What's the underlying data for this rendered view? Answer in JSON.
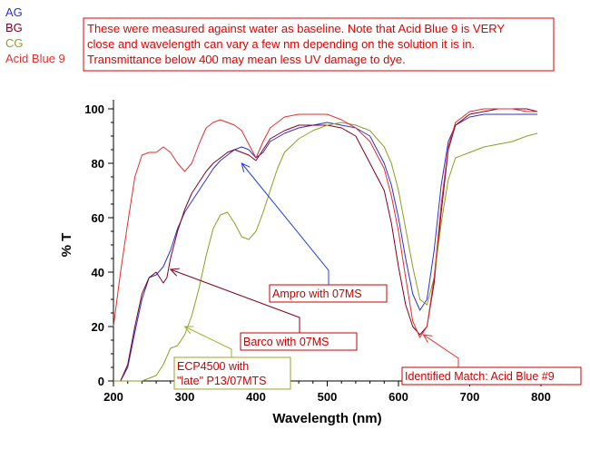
{
  "chart_data": {
    "type": "line",
    "xlabel": "Wavelength (nm)",
    "ylabel": "% T",
    "xlim": [
      200,
      800
    ],
    "ylim": [
      0,
      100
    ],
    "xticks": [
      200,
      300,
      400,
      500,
      600,
      700,
      800
    ],
    "yticks": [
      0,
      20,
      40,
      60,
      80,
      100
    ],
    "grid": false,
    "legend_position": "top-left",
    "series": [
      {
        "name": "AG",
        "color": "#3030d0",
        "x": [
          200,
          210,
          220,
          230,
          240,
          250,
          260,
          270,
          280,
          290,
          300,
          310,
          320,
          330,
          340,
          350,
          360,
          370,
          380,
          390,
          400,
          410,
          420,
          440,
          460,
          480,
          500,
          520,
          540,
          560,
          580,
          590,
          600,
          610,
          620,
          630,
          640,
          650,
          660,
          670,
          680,
          700,
          720,
          740,
          760,
          780,
          795
        ],
        "y": [
          0,
          0,
          5,
          18,
          30,
          38,
          39,
          42,
          48,
          56,
          62,
          66,
          70,
          74,
          78,
          81,
          83,
          85,
          86,
          85,
          82,
          84,
          88,
          91,
          93,
          94,
          95,
          94,
          93,
          90,
          80,
          72,
          60,
          45,
          32,
          26,
          30,
          48,
          72,
          88,
          94,
          97,
          98,
          98,
          98,
          98,
          98
        ]
      },
      {
        "name": "BG",
        "color": "#800020",
        "x": [
          200,
          210,
          220,
          230,
          240,
          250,
          260,
          270,
          275,
          280,
          290,
          300,
          310,
          320,
          330,
          340,
          350,
          360,
          370,
          380,
          390,
          400,
          410,
          420,
          440,
          460,
          480,
          500,
          520,
          540,
          560,
          580,
          590,
          600,
          610,
          620,
          630,
          640,
          650,
          660,
          670,
          680,
          700,
          720,
          740,
          760,
          780,
          795
        ],
        "y": [
          0,
          0,
          6,
          20,
          32,
          38,
          40,
          36,
          38,
          45,
          55,
          63,
          69,
          73,
          77,
          80,
          82,
          84,
          85,
          84,
          83,
          81,
          85,
          89,
          92,
          94,
          94,
          94,
          93,
          90,
          80,
          70,
          58,
          42,
          28,
          20,
          17,
          20,
          36,
          62,
          85,
          94,
          98,
          99,
          100,
          100,
          100,
          99
        ]
      },
      {
        "name": "CG",
        "color": "#8aa020",
        "x": [
          200,
          220,
          240,
          260,
          270,
          280,
          290,
          300,
          310,
          320,
          330,
          340,
          350,
          360,
          370,
          380,
          390,
          400,
          410,
          420,
          430,
          440,
          460,
          480,
          500,
          520,
          540,
          560,
          580,
          590,
          600,
          610,
          620,
          630,
          640,
          650,
          660,
          670,
          680,
          700,
          720,
          740,
          760,
          780,
          795
        ],
        "y": [
          0,
          0,
          0,
          2,
          6,
          12,
          13,
          17,
          24,
          34,
          46,
          56,
          61,
          62,
          58,
          53,
          52,
          55,
          62,
          70,
          78,
          84,
          89,
          92,
          94,
          95,
          94,
          92,
          86,
          80,
          70,
          56,
          42,
          30,
          28,
          38,
          58,
          74,
          82,
          84,
          86,
          87,
          88,
          90,
          91
        ]
      },
      {
        "name": "Acid Blue 9",
        "color": "#e03030",
        "x": [
          200,
          205,
          210,
          220,
          230,
          240,
          250,
          260,
          270,
          280,
          290,
          300,
          310,
          320,
          330,
          340,
          350,
          360,
          370,
          380,
          390,
          400,
          410,
          420,
          440,
          460,
          480,
          500,
          520,
          540,
          560,
          580,
          590,
          600,
          610,
          620,
          630,
          640,
          650,
          660,
          670,
          680,
          700,
          720,
          740,
          760,
          780,
          795
        ],
        "y": [
          20,
          30,
          40,
          58,
          75,
          83,
          84,
          84,
          86,
          84,
          80,
          77,
          80,
          87,
          93,
          95,
          96,
          95,
          94,
          92,
          87,
          82,
          88,
          93,
          97,
          98,
          98,
          98,
          96,
          93,
          88,
          78,
          68,
          55,
          38,
          22,
          16,
          20,
          38,
          65,
          86,
          95,
          99,
          100,
          100,
          100,
          99,
          99
        ]
      }
    ],
    "note": [
      "These were measured against water as baseline.  Note that Acid Blue 9 is VERY",
      "close and wavelength can vary a few nm depending on the solution it is in.",
      "Transmittance below 400 may mean less UV damage to dye."
    ],
    "annotations": [
      {
        "lines": [
          "Ampro with 07MS"
        ],
        "text_color": "#cc0000",
        "border_color": "#cc0000",
        "arrow_color": "#2040e0",
        "target": [
          380,
          80
        ]
      },
      {
        "lines": [
          "Barco with 07MS"
        ],
        "text_color": "#cc0000",
        "border_color": "#cc0000",
        "arrow_color": "#800020",
        "target": [
          280,
          41
        ]
      },
      {
        "lines": [
          "ECP4500 with",
          "\"late\" P13/07MTS"
        ],
        "text_color": "#cc0000",
        "border_color": "#a0a020",
        "arrow_color": "#a0b030",
        "target": [
          300,
          20
        ]
      },
      {
        "lines": [
          "Identified Match: Acid Blue #9"
        ],
        "text_color": "#cc0000",
        "border_color": "#cc0000",
        "arrow_color": "#e03030",
        "target": [
          635,
          17
        ]
      }
    ]
  }
}
